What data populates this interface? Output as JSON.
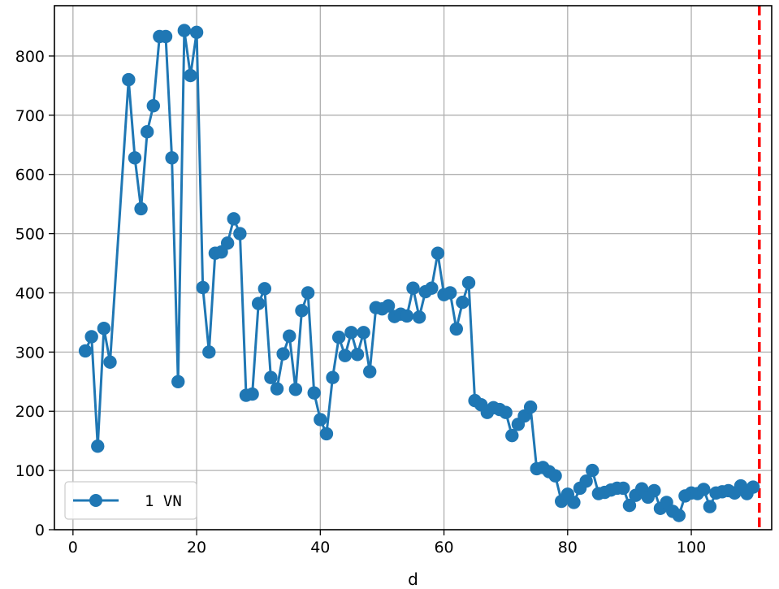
{
  "chart_data": {
    "type": "line",
    "title": "",
    "xlabel": "d",
    "ylabel": "",
    "xlim": [
      -3,
      113
    ],
    "ylim": [
      0,
      885
    ],
    "grid": true,
    "legend_placement": "lower-left",
    "xticks": [
      0,
      20,
      40,
      60,
      80,
      100
    ],
    "yticks": [
      0,
      100,
      200,
      300,
      400,
      500,
      600,
      700,
      800
    ],
    "colors": {
      "series": "#1f77b4",
      "vline": "#ff0000",
      "grid": "#b0b0b0"
    },
    "vline": {
      "x": 111,
      "style": "dashed"
    },
    "series": [
      {
        "name": "1 VN",
        "marker": "circle",
        "x": [
          2,
          3,
          4,
          5,
          6,
          9,
          10,
          11,
          12,
          13,
          14,
          15,
          16,
          17,
          18,
          19,
          20,
          21,
          22,
          23,
          24,
          25,
          26,
          27,
          28,
          29,
          30,
          31,
          32,
          33,
          34,
          35,
          36,
          37,
          38,
          39,
          40,
          41,
          42,
          43,
          44,
          45,
          46,
          47,
          48,
          49,
          50,
          51,
          52,
          53,
          54,
          55,
          56,
          57,
          58,
          59,
          60,
          61,
          62,
          63,
          64,
          65,
          66,
          67,
          68,
          69,
          70,
          71,
          72,
          73,
          74,
          75,
          76,
          77,
          78,
          79,
          80,
          81,
          82,
          83,
          84,
          85,
          86,
          87,
          88,
          89,
          90,
          91,
          92,
          93,
          94,
          95,
          96,
          97,
          98,
          99,
          100,
          101,
          102,
          103,
          104,
          105,
          106,
          107,
          108,
          109,
          110
        ],
        "y": [
          302,
          326,
          141,
          340,
          283,
          760,
          628,
          542,
          672,
          716,
          833,
          833,
          628,
          250,
          843,
          767,
          840,
          409,
          300,
          467,
          469,
          484,
          525,
          500,
          227,
          229,
          382,
          407,
          257,
          238,
          297,
          327,
          237,
          370,
          400,
          231,
          186,
          162,
          257,
          325,
          294,
          333,
          296,
          333,
          267,
          375,
          373,
          378,
          360,
          364,
          361,
          408,
          359,
          402,
          408,
          467,
          397,
          400,
          339,
          384,
          417,
          218,
          211,
          198,
          206,
          203,
          198,
          159,
          178,
          192,
          207,
          103,
          105,
          98,
          91,
          48,
          60,
          46,
          70,
          82,
          100,
          61,
          63,
          67,
          70,
          70,
          41,
          58,
          69,
          55,
          66,
          36,
          46,
          31,
          24,
          57,
          62,
          61,
          68,
          39,
          62,
          64,
          66,
          62,
          74,
          61,
          72
        ]
      }
    ]
  }
}
